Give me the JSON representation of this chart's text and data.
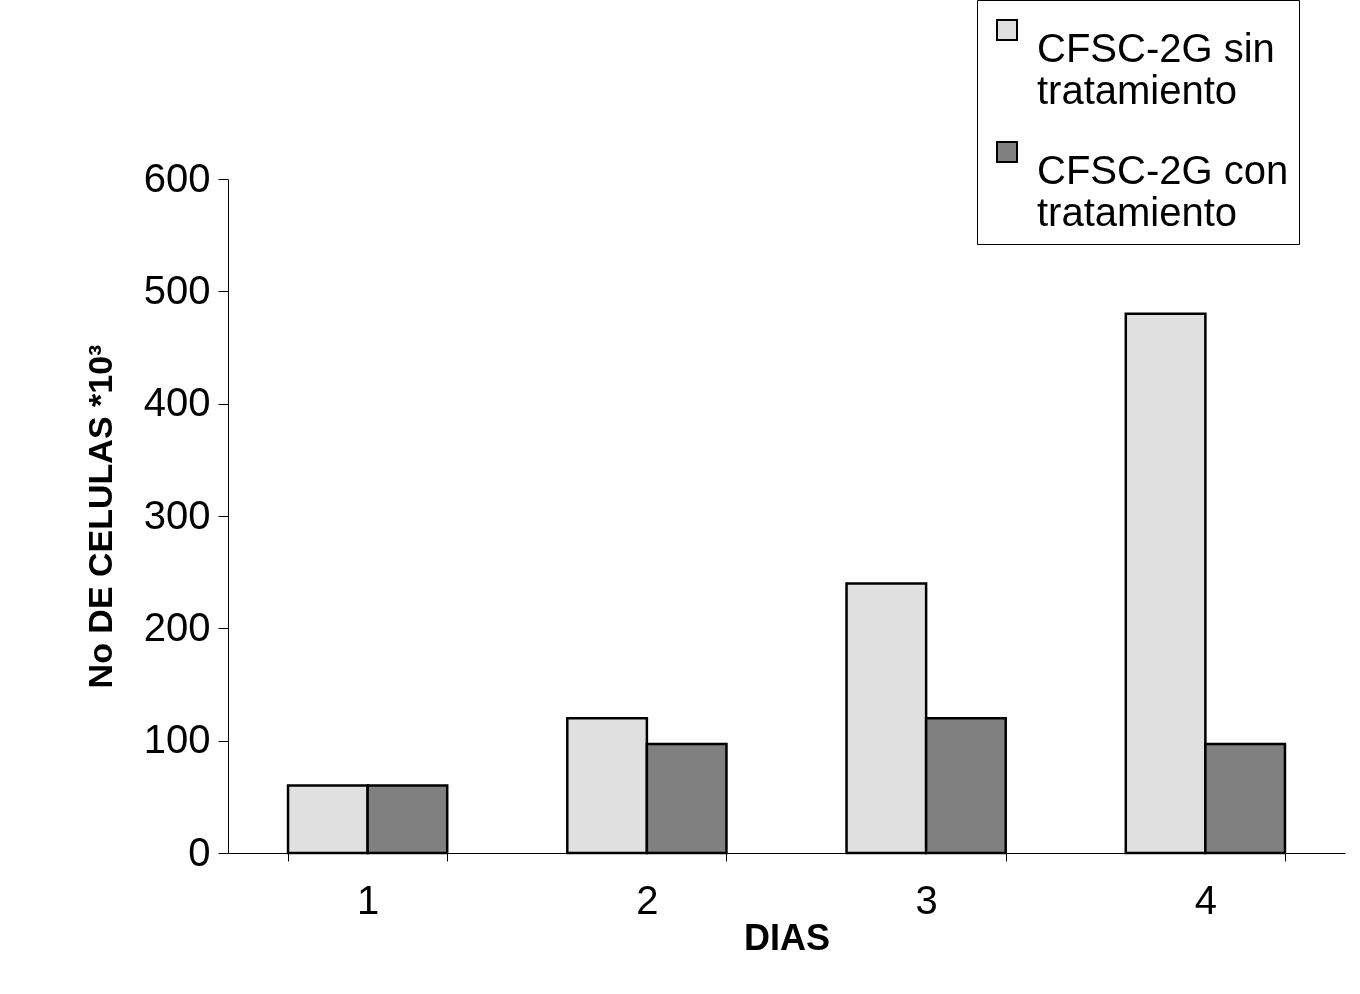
{
  "chart_data": {
    "type": "bar",
    "xlabel": "DIAS",
    "ylabel": "No DE CELULAS *10³",
    "categories": [
      "1",
      "2",
      "3",
      "4"
    ],
    "series": [
      {
        "name": "CFSC-2G sin tratamiento",
        "color": "#e0e0e0",
        "values": [
          60,
          120,
          240,
          480
        ]
      },
      {
        "name": "CFSC-2G con tratamiento",
        "color": "#808080",
        "values": [
          60,
          97,
          120,
          97
        ]
      }
    ],
    "ylim": [
      0,
      600
    ],
    "yticks": [
      0,
      100,
      200,
      300,
      400,
      500,
      600
    ],
    "grid": false,
    "legend": "top right"
  }
}
